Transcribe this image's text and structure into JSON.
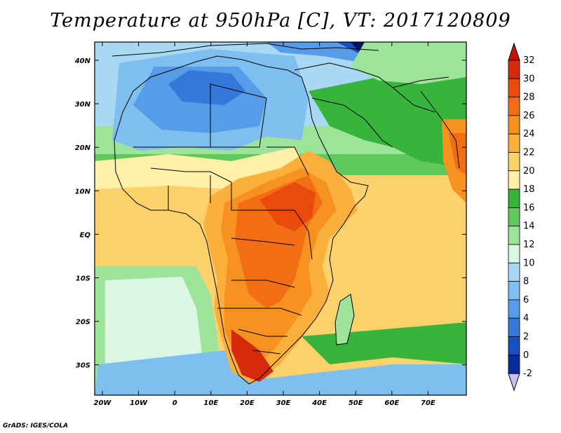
{
  "title": "Temperature at 950hPa [C], VT: 2017120809",
  "credit": "GrADS: IGES/COLA",
  "map": {
    "lon_range": [
      -23,
      80
    ],
    "lat_range": [
      -37,
      45
    ],
    "lat_ticks": [
      "40N",
      "30N",
      "20N",
      "10N",
      "EQ",
      "10S",
      "20S",
      "30S"
    ],
    "lon_ticks": [
      "20W",
      "10W",
      "0",
      "10E",
      "20E",
      "30E",
      "40E",
      "50E",
      "60E",
      "70E"
    ]
  },
  "colorbar": {
    "labels": [
      "32",
      "30",
      "28",
      "26",
      "24",
      "22",
      "20",
      "18",
      "16",
      "14",
      "12",
      "10",
      "8",
      "6",
      "4",
      "2",
      "0",
      "-2"
    ],
    "colors": [
      "#d52a0b",
      "#ea4a0c",
      "#f26d13",
      "#f7911f",
      "#fbb03e",
      "#fdd26b",
      "#fff0a8",
      "#37b43c",
      "#5fc95e",
      "#9de39a",
      "#dbf7e3",
      "#a9d8f5",
      "#7fbff0",
      "#569ce8",
      "#3578d9",
      "#1a4fc4",
      "#0b2a9b",
      "#071568",
      "#c9bff0",
      "#c81405"
    ]
  }
}
